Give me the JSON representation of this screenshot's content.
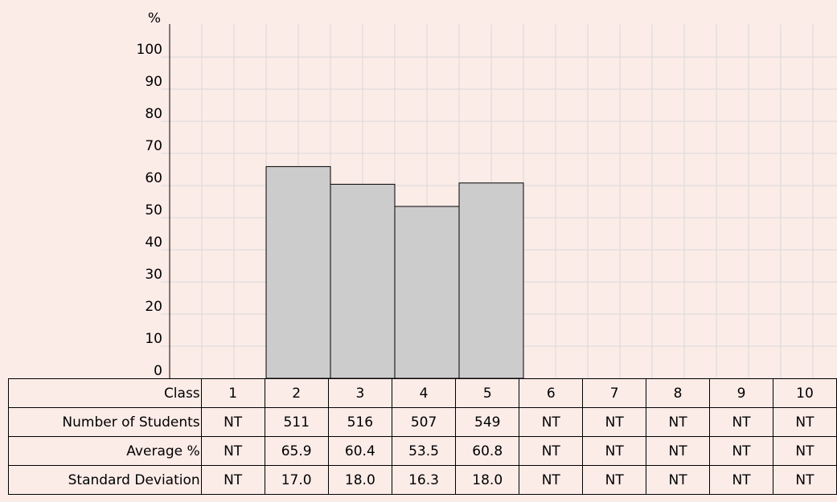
{
  "chart_data": {
    "type": "bar",
    "ylabel": "%",
    "ylim": [
      0,
      100
    ],
    "yticks": [
      0,
      10,
      20,
      30,
      40,
      50,
      60,
      70,
      80,
      90,
      100
    ],
    "categories": [
      "1",
      "2",
      "3",
      "4",
      "5",
      "6",
      "7",
      "8",
      "9",
      "10"
    ],
    "values": [
      null,
      65.9,
      60.4,
      53.5,
      60.8,
      null,
      null,
      null,
      null,
      null
    ],
    "grid": true,
    "colors": {
      "bar": "#cccccc",
      "grid": "#d9d9d9",
      "background": "#fbece8"
    }
  },
  "table": {
    "class_label": "Class",
    "rows": [
      {
        "label": "Number of Students",
        "cells": [
          "NT",
          "511",
          "516",
          "507",
          "549",
          "NT",
          "NT",
          "NT",
          "NT",
          "NT"
        ]
      },
      {
        "label": "Average %",
        "cells": [
          "NT",
          "65.9",
          "60.4",
          "53.5",
          "60.8",
          "NT",
          "NT",
          "NT",
          "NT",
          "NT"
        ]
      },
      {
        "label": "Standard Deviation",
        "cells": [
          "NT",
          "17.0",
          "18.0",
          "16.3",
          "18.0",
          "NT",
          "NT",
          "NT",
          "NT",
          "NT"
        ]
      }
    ]
  }
}
